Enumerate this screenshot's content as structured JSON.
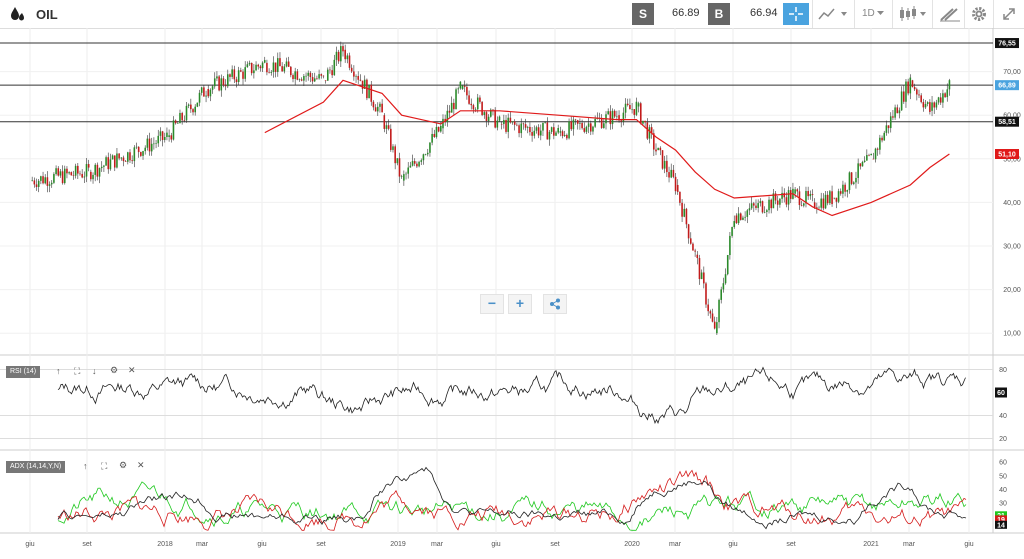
{
  "toolbar": {
    "symbol": "OIL",
    "sell_label": "S",
    "sell_price": "66.89",
    "buy_label": "B",
    "buy_price": "66.94",
    "interval": "1D",
    "icons": [
      "oil-drop-icon",
      "crosshair-icon",
      "chart-type-icon",
      "candlestick-icon",
      "draw-icon",
      "gear-icon",
      "fullscreen-icon"
    ]
  },
  "main_chart": {
    "y_ticks": [
      "70,00",
      "60,00",
      "50,00",
      "40,00",
      "30,00",
      "20,00",
      "10,00"
    ],
    "price_labels": {
      "upper_line": "76,55",
      "last_price": "66,89",
      "lower_line": "58,51",
      "ma_value": "51,10"
    },
    "colors": {
      "last_price": "#4aa3df",
      "ma": "#e01a1a",
      "line_label": "#111111"
    }
  },
  "x_axis": {
    "labels": [
      "giu",
      "set",
      "2018",
      "mar",
      "giu",
      "set",
      "2019",
      "mar",
      "giu",
      "set",
      "2020",
      "mar",
      "giu",
      "set",
      "2021",
      "mar",
      "giu"
    ]
  },
  "rsi_panel": {
    "tag": "RSI (14)",
    "y_ticks": [
      "80",
      "40",
      "20"
    ],
    "value": "60"
  },
  "adx_panel": {
    "tag": "ADX (14,14,Y,N)",
    "y_ticks": [
      "60",
      "50",
      "40",
      "30",
      "20"
    ],
    "value_green": "21",
    "value_red": "19",
    "value_black": "14"
  },
  "zoom_controls": {
    "minus": "−",
    "plus": "+",
    "share": "share"
  },
  "chart_data": {
    "type": "line",
    "title": "OIL",
    "x": [
      "2017-06",
      "2017-09",
      "2018-01",
      "2018-03",
      "2018-06",
      "2018-09",
      "2018-10",
      "2018-12",
      "2019-01",
      "2019-03",
      "2019-04",
      "2019-06",
      "2019-09",
      "2019-12",
      "2020-01",
      "2020-02",
      "2020-03",
      "2020-04",
      "2020-05",
      "2020-06",
      "2020-09",
      "2020-10",
      "2020-11",
      "2021-01",
      "2021-03",
      "2021-04",
      "2021-05"
    ],
    "series": [
      {
        "values": [
          45,
          47,
          55,
          66,
          72,
          68,
          75,
          60,
          45,
          57,
          66,
          58,
          56,
          60,
          62,
          52,
          44,
          28,
          10,
          37,
          42,
          40,
          41,
          50,
          68,
          61,
          66.9
        ]
      },
      {
        "values": [
          null,
          null,
          null,
          null,
          56,
          63,
          68,
          65,
          60,
          58,
          61,
          61,
          60,
          59,
          59,
          55,
          52,
          47,
          43,
          41,
          42,
          39,
          37,
          40,
          44,
          48,
          51.1
        ]
      }
    ],
    "ylim": [
      5,
      80
    ],
    "horizontal_lines": [
      76.55,
      66.89,
      58.51
    ]
  }
}
